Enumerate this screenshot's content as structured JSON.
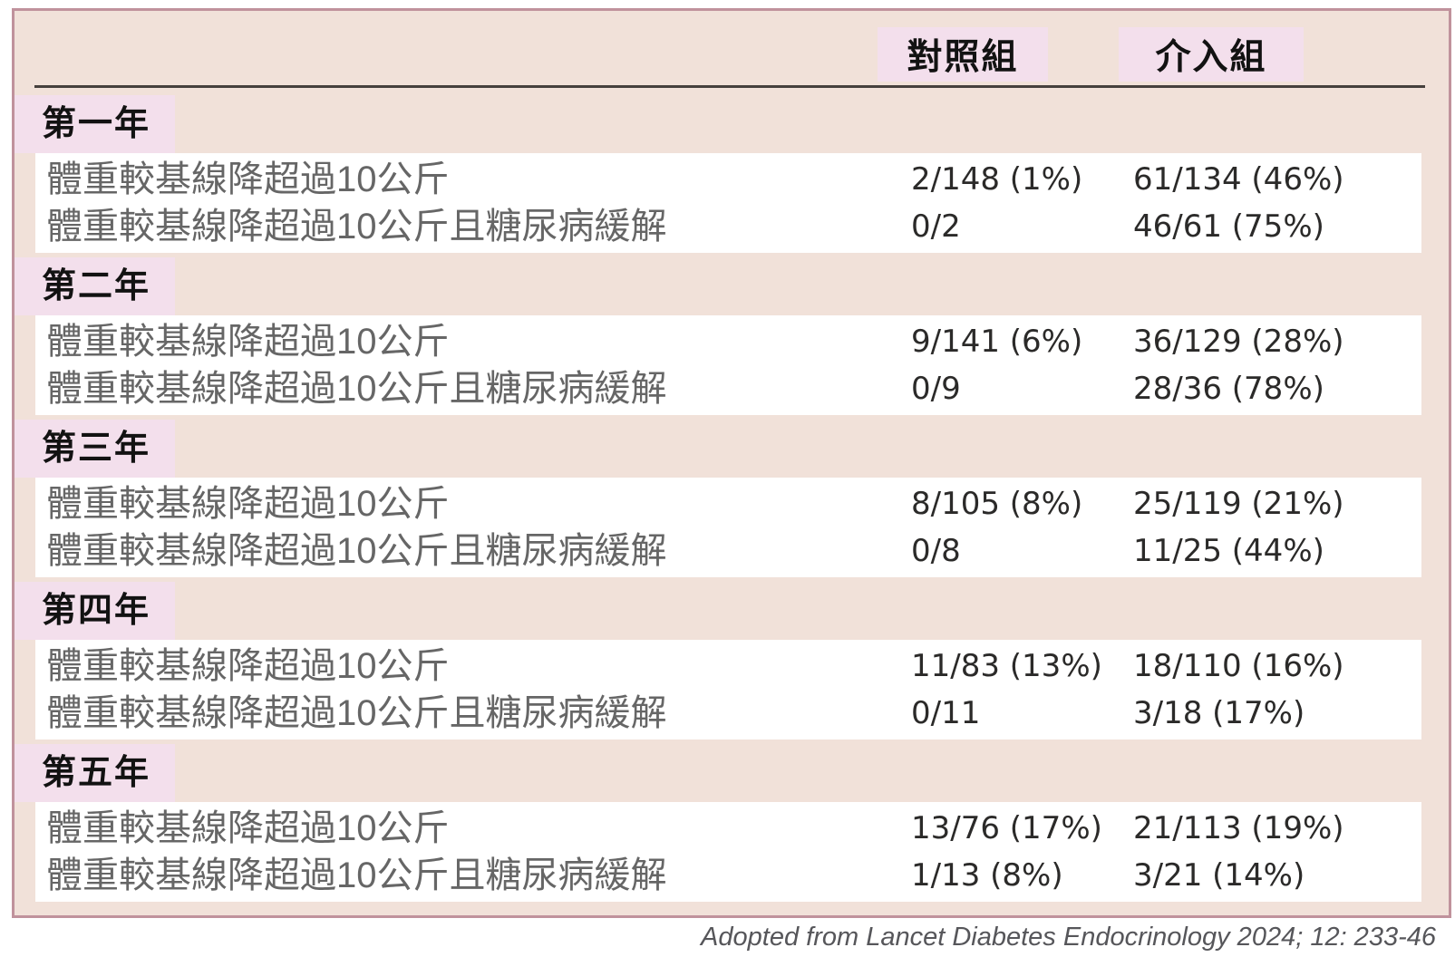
{
  "chart_data": {
    "type": "table",
    "columns": {
      "control": "對照組",
      "intervention": "介入組"
    },
    "sections": [
      {
        "year": "第一年",
        "rows": [
          {
            "label": "體重較基線降超過10公斤",
            "control": "2/148 (1%)",
            "intervention": "61/134 (46%)"
          },
          {
            "label": "體重較基線降超過10公斤且糖尿病緩解",
            "control": "0/2",
            "intervention": "46/61 (75%)"
          }
        ]
      },
      {
        "year": "第二年",
        "rows": [
          {
            "label": "體重較基線降超過10公斤",
            "control": "9/141 (6%)",
            "intervention": "36/129 (28%)"
          },
          {
            "label": "體重較基線降超過10公斤且糖尿病緩解",
            "control": "0/9",
            "intervention": "28/36 (78%)"
          }
        ]
      },
      {
        "year": "第三年",
        "rows": [
          {
            "label": "體重較基線降超過10公斤",
            "control": "8/105 (8%)",
            "intervention": "25/119 (21%)"
          },
          {
            "label": "體重較基線降超過10公斤且糖尿病緩解",
            "control": "0/8",
            "intervention": "11/25 (44%)"
          }
        ]
      },
      {
        "year": "第四年",
        "rows": [
          {
            "label": "體重較基線降超過10公斤",
            "control": "11/83 (13%)",
            "intervention": "18/110 (16%)"
          },
          {
            "label": "體重較基線降超過10公斤且糖尿病緩解",
            "control": "0/11",
            "intervention": "3/18 (17%)"
          }
        ]
      },
      {
        "year": "第五年",
        "rows": [
          {
            "label": "體重較基線降超過10公斤",
            "control": "13/76 (17%)",
            "intervention": "21/113 (19%)"
          },
          {
            "label": "體重較基線降超過10公斤且糖尿病緩解",
            "control": "1/13 (8%)",
            "intervention": "3/21 (14%)"
          }
        ]
      }
    ],
    "source": "Adopted from Lancet Diabetes Endocrinology 2024; 12: 233-46"
  },
  "colors": {
    "card_bg": "#f1e1d9",
    "card_border": "#c0929c",
    "highlight_pink": "#f3dfec",
    "divider_dark": "#46403d",
    "row_label_gray": "#666666",
    "value_ink": "#2b2a29",
    "heading_ink": "#121212",
    "citation_gray": "#56565a"
  }
}
